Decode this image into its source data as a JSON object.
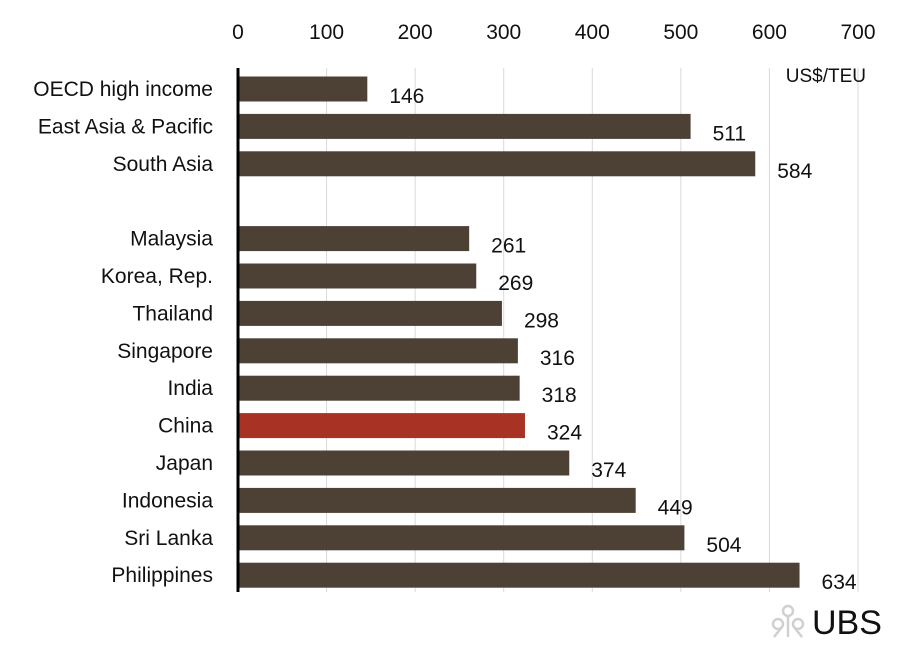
{
  "chart_data": {
    "type": "bar",
    "orientation": "horizontal",
    "unit_label": "US$/TEU",
    "categories": [
      "OECD high income",
      "East Asia & Pacific",
      "South Asia",
      "",
      "Malaysia",
      "Korea, Rep.",
      "Thailand",
      "Singapore",
      "India",
      "China",
      "Japan",
      "Indonesia",
      "Sri Lanka",
      "Philippines"
    ],
    "values": [
      146,
      511,
      584,
      null,
      261,
      269,
      298,
      316,
      318,
      324,
      374,
      449,
      504,
      634
    ],
    "highlight_category": "China",
    "xlim": [
      0,
      700
    ],
    "x_ticks": [
      0,
      100,
      200,
      300,
      400,
      500,
      600,
      700
    ],
    "x_axis_position": "top",
    "grid": true,
    "data_labels": true,
    "colors": {
      "bar": "#4d4035",
      "highlight": "#a83325",
      "grid": "#d9d9d9",
      "axis": "#000000"
    }
  },
  "watermark": {
    "text": "UBS",
    "icon": "ubs-keys-logo-icon"
  }
}
